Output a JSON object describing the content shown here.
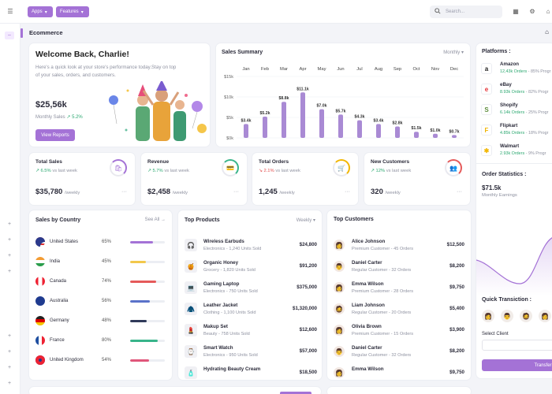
{
  "topbar": {
    "apps_label": "Apps",
    "features_label": "Features",
    "search_placeholder": "Search...",
    "accent": "#a472d6"
  },
  "breadcrumb": "Ecommerce",
  "welcome": {
    "title": "Welcome Back, Charlie!",
    "text": "Here's a quick look at your store's performance today.Stay on top of your sales, orders, and customers.",
    "amount": "$25,56k",
    "label": "Monthly Sales",
    "change": "5.2%",
    "button": "View Reports"
  },
  "sales_summary": {
    "title": "Sales Summary",
    "period": "Monthly"
  },
  "chart_data": {
    "type": "bar",
    "categories": [
      "Jan",
      "Feb",
      "Mar",
      "Apr",
      "May",
      "Jun",
      "Jul",
      "Aug",
      "Sep",
      "Oct",
      "Nov",
      "Dec"
    ],
    "values": [
      3.4,
      5.2,
      8.8,
      11.1,
      7.0,
      5.7,
      4.3,
      3.4,
      2.8,
      1.5,
      1.0,
      0.7
    ],
    "data_labels": [
      "$3.4k",
      "$5.2k",
      "$8.8k",
      "$11.1k",
      "$7.0k",
      "$5.7k",
      "$4.3k",
      "$3.4k",
      "$2.8k",
      "$1.5k",
      "$1.0k",
      "$0.7k"
    ],
    "yticks": [
      "$15k",
      "$10k",
      "$5k",
      "$0k"
    ],
    "ylim": [
      0,
      15
    ],
    "grid": true,
    "color": "#a98ad4"
  },
  "stats": [
    {
      "title": "Total Sales",
      "change": "6.5%",
      "note": "vs last week",
      "value": "$35,780",
      "unit": "/weekly",
      "dir": "up",
      "icon": "🛍"
    },
    {
      "title": "Revenue",
      "change": "5.7%",
      "note": "vs last week",
      "value": "$2,458",
      "unit": "/weekly",
      "dir": "up",
      "icon": "💳"
    },
    {
      "title": "Total Orders",
      "change": "2.1%",
      "note": "vs last week",
      "value": "1,245",
      "unit": "/weekly",
      "dir": "down",
      "icon": "🛒"
    },
    {
      "title": "New Customers",
      "change": "12%",
      "note": "vs last week",
      "value": "320",
      "unit": "/weekly",
      "dir": "up",
      "icon": "👥"
    }
  ],
  "countries": {
    "title": "Sales by Country",
    "see_all": "See All",
    "rows": [
      {
        "name": "United States",
        "pct": "65%",
        "fill": 65,
        "color": "#a472d6"
      },
      {
        "name": "India",
        "pct": "45%",
        "fill": 45,
        "color": "#f2c84b"
      },
      {
        "name": "Canada",
        "pct": "74%",
        "fill": 74,
        "color": "#e55a5a"
      },
      {
        "name": "Australia",
        "pct": "56%",
        "fill": 56,
        "color": "#5a72c9"
      },
      {
        "name": "Germany",
        "pct": "48%",
        "fill": 48,
        "color": "#2f3a59"
      },
      {
        "name": "France",
        "pct": "80%",
        "fill": 80,
        "color": "#38b48a"
      },
      {
        "name": "United Kingdom",
        "pct": "54%",
        "fill": 54,
        "color": "#e0567a"
      }
    ]
  },
  "products": {
    "title": "Top Products",
    "period": "Weekly",
    "rows": [
      {
        "name": "Wireless Earbuds",
        "sub": "Electronics - 1,240 Units Sold",
        "price": "$24,800",
        "icon": "🎧"
      },
      {
        "name": "Organic Honey",
        "sub": "Grocery - 1,820 Units Sold",
        "price": "$91,200",
        "icon": "🍯"
      },
      {
        "name": "Gaming Laptop",
        "sub": "Electronics - 750 Units Sold",
        "price": "$375,000",
        "icon": "💻"
      },
      {
        "name": "Leather Jacket",
        "sub": "Clothing - 1,100 Units Sold",
        "price": "$1,320,000",
        "icon": "🧥"
      },
      {
        "name": "Makup Set",
        "sub": "Beauty - 758 Units Sold",
        "price": "$12,600",
        "icon": "💄"
      },
      {
        "name": "Smart Watch",
        "sub": "Electronics - 950 Units Sold",
        "price": "$57,000",
        "icon": "⌚"
      },
      {
        "name": "Hydrating Beauty Cream",
        "sub": "",
        "price": "$18,500",
        "icon": "🧴"
      }
    ]
  },
  "customers": {
    "title": "Top Customers",
    "rows": [
      {
        "name": "Alice Johnson",
        "sub": "Premium Customer - 45 Orders",
        "amount": "$12,500"
      },
      {
        "name": "Daniel Carter",
        "sub": "Regular Customer - 32 Orders",
        "amount": "$8,200"
      },
      {
        "name": "Emma Wilson",
        "sub": "Premium Customer - 28 Orders",
        "amount": "$9,750"
      },
      {
        "name": "Liam Johnson",
        "sub": "Regular Customer - 20 Orders",
        "amount": "$5,400"
      },
      {
        "name": "Olivia Brown",
        "sub": "Premium Customer - 15 Orders",
        "amount": "$3,900"
      },
      {
        "name": "Daniel Carter",
        "sub": "Regular Customer - 32 Orders",
        "amount": "$8,200"
      },
      {
        "name": "Emma Wilson",
        "sub": "",
        "amount": "$9,750"
      }
    ]
  },
  "platforms": {
    "title": "Platforms :",
    "rows": [
      {
        "name": "Amazon",
        "orders": "12,43k Orders",
        "prog": "- 85% Progr",
        "icon": "a",
        "color": "#222"
      },
      {
        "name": "eBay",
        "orders": "8.93k Orders",
        "prog": "- 82% Progr",
        "icon": "e",
        "color": "#e53238"
      },
      {
        "name": "Shopify",
        "orders": "6.14k Orders",
        "prog": "- 25% Progr",
        "icon": "S",
        "color": "#5e8e3e"
      },
      {
        "name": "Flipkart",
        "orders": "4.85k Orders",
        "prog": "- 18% Progr",
        "icon": "F",
        "color": "#f0b400"
      },
      {
        "name": "Walmart",
        "orders": "2.93k Orders",
        "prog": "- 9% Progr",
        "icon": "✱",
        "color": "#f2b705"
      }
    ]
  },
  "order_stats": {
    "title": "Order Statistics :",
    "value": "$71.5k",
    "label": "Monthly Earnings"
  },
  "quick": {
    "title": "Quick Transiction :",
    "select_label": "Select Client",
    "button": "Transfer"
  }
}
